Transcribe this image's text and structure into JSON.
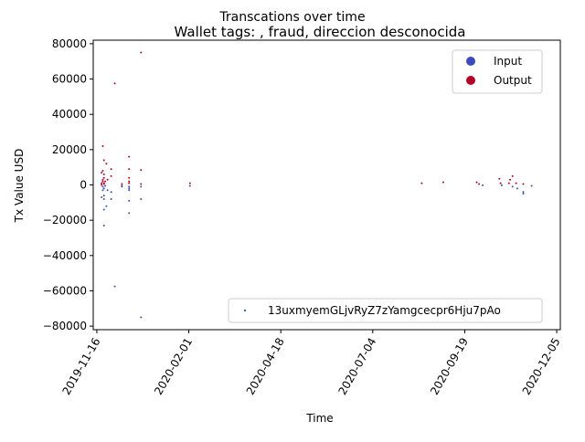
{
  "chart_data": {
    "type": "scatter",
    "suptitle": "Transcations over time",
    "title": "Wallet tags: , fraud, direccion desconocida",
    "xlabel": "Time",
    "ylabel": "Tx Value USD",
    "xlim": [
      "2019-11-13",
      "2020-12-08"
    ],
    "ylim": [
      -82000,
      82000
    ],
    "x_ticks": [
      "2019-11-16",
      "2020-02-01",
      "2020-04-18",
      "2020-07-04",
      "2020-09-19",
      "2020-12-05"
    ],
    "y_ticks": [
      -80000,
      -60000,
      -40000,
      -20000,
      0,
      20000,
      40000,
      60000,
      80000
    ],
    "y_tick_labels": [
      "−80000",
      "−60000",
      "−40000",
      "−20000",
      "0",
      "20000",
      "40000",
      "60000",
      "80000"
    ],
    "legend_main": {
      "placement": "top-right",
      "entries": [
        {
          "name": "Input",
          "color": "#3b4cc0"
        },
        {
          "name": "Output",
          "color": "#b40426"
        }
      ]
    },
    "legend_address": {
      "placement": "bottom-right",
      "label": "13uxmyemGLjvRyZ7zYamgcecpr6Hju7pAo",
      "color": "#1f77b4"
    },
    "series": [
      {
        "name": "Input",
        "color": "#3b4cc0",
        "points": [
          [
            "2019-11-20",
            -7000
          ],
          [
            "2019-11-21",
            -1000
          ],
          [
            "2019-11-21",
            -3000
          ],
          [
            "2019-11-22",
            -6000
          ],
          [
            "2019-11-22",
            -8000
          ],
          [
            "2019-11-22",
            -14000
          ],
          [
            "2019-11-22",
            -23000
          ],
          [
            "2019-11-22",
            -2000
          ],
          [
            "2019-11-23",
            -500
          ],
          [
            "2019-11-24",
            -12000
          ],
          [
            "2019-11-25",
            -3000
          ],
          [
            "2019-11-28",
            -4000
          ],
          [
            "2019-11-28",
            -8000
          ],
          [
            "2019-12-01",
            -57500
          ],
          [
            "2019-12-07",
            -500
          ],
          [
            "2019-12-07",
            -1000
          ],
          [
            "2019-12-13",
            -1000
          ],
          [
            "2019-12-13",
            -2000
          ],
          [
            "2019-12-13",
            -3000
          ],
          [
            "2019-12-13",
            -9000
          ],
          [
            "2019-12-13",
            -16000
          ],
          [
            "2019-12-23",
            -1000
          ],
          [
            "2019-12-23",
            -8000
          ],
          [
            "2019-12-23",
            -75000
          ],
          [
            "2020-02-02",
            -500
          ],
          [
            "2020-10-04",
            -200
          ],
          [
            "2020-10-20",
            -200
          ],
          [
            "2020-10-29",
            -1000
          ],
          [
            "2020-11-02",
            -2000
          ],
          [
            "2020-11-07",
            -4000
          ],
          [
            "2020-11-07",
            -5000
          ],
          [
            "2020-11-14",
            -500
          ]
        ]
      },
      {
        "name": "Output",
        "color": "#b40426",
        "points": [
          [
            "2019-11-20",
            7000
          ],
          [
            "2019-11-20",
            1000
          ],
          [
            "2019-11-20",
            0
          ],
          [
            "2019-11-21",
            22000
          ],
          [
            "2019-11-21",
            8000
          ],
          [
            "2019-11-21",
            3000
          ],
          [
            "2019-11-21",
            2000
          ],
          [
            "2019-11-22",
            14000
          ],
          [
            "2019-11-22",
            6000
          ],
          [
            "2019-11-22",
            4000
          ],
          [
            "2019-11-22",
            1000
          ],
          [
            "2019-11-22",
            500
          ],
          [
            "2019-11-23",
            2000
          ],
          [
            "2019-11-24",
            12000
          ],
          [
            "2019-11-25",
            3000
          ],
          [
            "2019-11-28",
            9000
          ],
          [
            "2019-11-28",
            5000
          ],
          [
            "2019-12-01",
            57500
          ],
          [
            "2019-12-07",
            500
          ],
          [
            "2019-12-13",
            16000
          ],
          [
            "2019-12-13",
            9000
          ],
          [
            "2019-12-13",
            4000
          ],
          [
            "2019-12-13",
            2000
          ],
          [
            "2019-12-13",
            1000
          ],
          [
            "2019-12-23",
            8500
          ],
          [
            "2019-12-23",
            500
          ],
          [
            "2019-12-23",
            75000
          ],
          [
            "2020-02-02",
            1000
          ],
          [
            "2020-08-14",
            1000
          ],
          [
            "2020-09-01",
            1500
          ],
          [
            "2020-09-29",
            1500
          ],
          [
            "2020-10-01",
            500
          ],
          [
            "2020-10-18",
            3500
          ],
          [
            "2020-10-19",
            1000
          ],
          [
            "2020-10-26",
            1000
          ],
          [
            "2020-10-27",
            3000
          ],
          [
            "2020-10-29",
            5000
          ],
          [
            "2020-11-01",
            1000
          ],
          [
            "2020-11-07",
            500
          ]
        ]
      }
    ]
  }
}
